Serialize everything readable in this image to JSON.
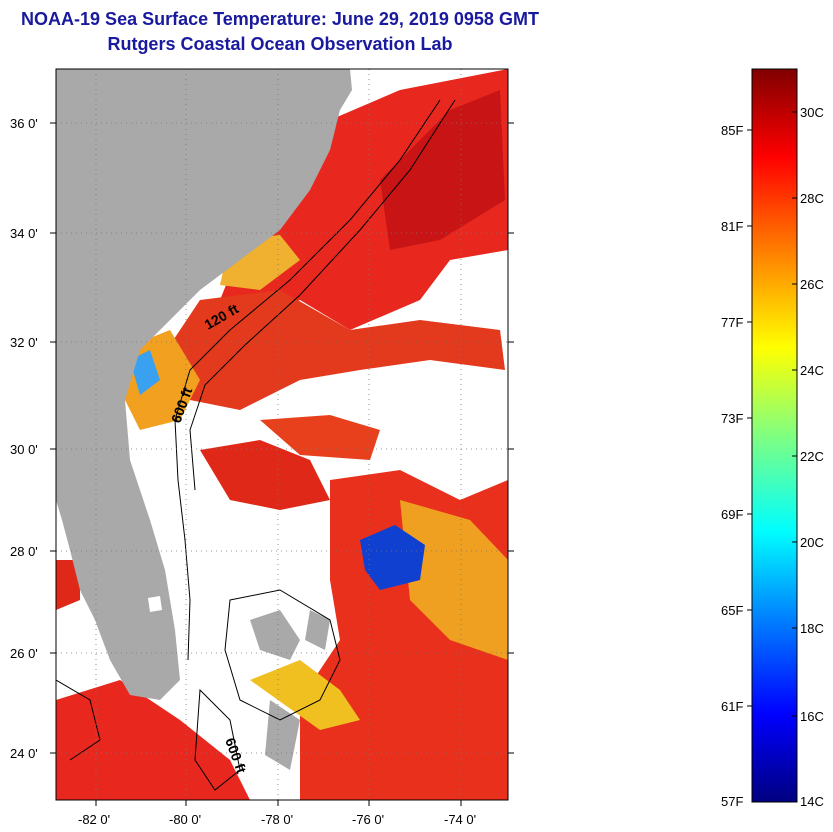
{
  "title_line1": "NOAA-19 Sea Surface Temperature:  June 29, 2019 0958 GMT",
  "title_line2": "Rutgers Coastal Ocean Observation Lab",
  "map": {
    "lat_labels": [
      "36 0'",
      "34 0'",
      "32 0'",
      "30 0'",
      "28 0'",
      "26 0'",
      "24 0'"
    ],
    "lon_labels": [
      "-82 0'",
      "-80 0'",
      "-78 0'",
      "-76 0'",
      "-74 0'"
    ],
    "isobath_labels": [
      "120 ft",
      "600 ft",
      "600 ft"
    ],
    "colors": {
      "land": "#a9a9a9",
      "cloud": "#ffffff",
      "warm": "#e8281e",
      "hot": "#c81414"
    }
  },
  "colorbar": {
    "fahrenheit_labels": [
      "85F",
      "81F",
      "77F",
      "73F",
      "69F",
      "65F",
      "61F",
      "57F"
    ],
    "celsius_labels": [
      "30C",
      "28C",
      "26C",
      "24C",
      "22C",
      "20C",
      "18C",
      "16C",
      "14C"
    ],
    "colors": [
      "#000080",
      "#0000ff",
      "#0080ff",
      "#00ffff",
      "#80ff80",
      "#ffff00",
      "#ff8000",
      "#ff0000",
      "#800000"
    ]
  }
}
